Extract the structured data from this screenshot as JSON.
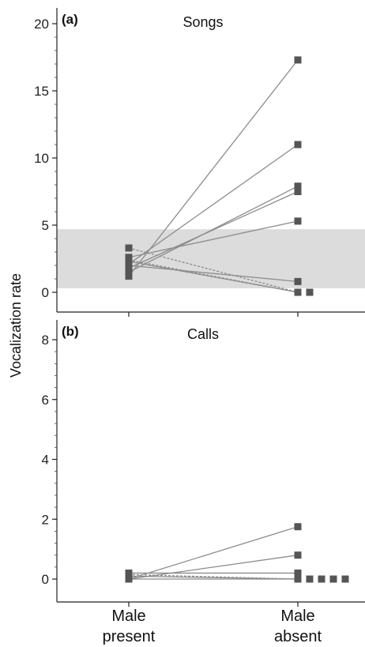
{
  "chart_data": {
    "type": "scatter",
    "ylabel": "Vocalization rate",
    "categories": [
      "Male present",
      "Male absent"
    ],
    "category_label_lines": [
      [
        "Male",
        "present"
      ],
      [
        "Male",
        "absent"
      ]
    ],
    "colors": {
      "marker": "#555555",
      "line": "#8c8c8c",
      "band": "#dcdcdc"
    },
    "panels": [
      {
        "letter": "(a)",
        "title": "Songs",
        "ylim": [
          0,
          20
        ],
        "yticks": [
          0,
          5,
          10,
          15,
          20
        ],
        "minor_step": 1,
        "band": [
          0.3,
          4.7
        ],
        "pairs": [
          {
            "present": 1.2,
            "absent": 17.3,
            "style": "solid"
          },
          {
            "present": 2.1,
            "absent": 11.0,
            "style": "solid"
          },
          {
            "present": 1.5,
            "absent": 7.9,
            "style": "solid"
          },
          {
            "present": 1.8,
            "absent": 7.5,
            "style": "solid"
          },
          {
            "present": 2.6,
            "absent": 5.3,
            "style": "solid"
          },
          {
            "present": 2.0,
            "absent": 0.8,
            "style": "solid"
          },
          {
            "present": 2.3,
            "absent": 0.0,
            "style": "solid"
          },
          {
            "present": 3.3,
            "absent": 0.0,
            "style": "dashed"
          },
          {
            "present": 2.4,
            "absent": 0.0,
            "style": "dashed"
          }
        ],
        "extra_absent": [
          0.0
        ]
      },
      {
        "letter": "(b)",
        "title": "Calls",
        "ylim": [
          0,
          8
        ],
        "yticks": [
          0,
          2,
          4,
          6,
          8
        ],
        "minor_step": 0.4,
        "band": null,
        "pairs": [
          {
            "present": 0.0,
            "absent": 1.75,
            "style": "solid"
          },
          {
            "present": 0.0,
            "absent": 0.8,
            "style": "solid"
          },
          {
            "present": 0.2,
            "absent": 0.2,
            "style": "solid"
          },
          {
            "present": 0.1,
            "absent": 0.0,
            "style": "solid"
          },
          {
            "present": 0.0,
            "absent": 0.0,
            "style": "solid"
          },
          {
            "present": 0.15,
            "absent": 0.0,
            "style": "dashed"
          }
        ],
        "extra_absent": [
          0.0,
          0.0,
          0.0,
          0.0
        ]
      }
    ]
  }
}
